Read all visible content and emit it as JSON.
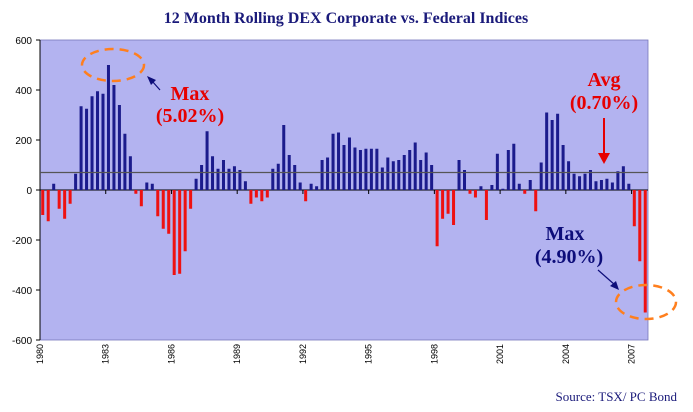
{
  "chart_data": {
    "type": "bar",
    "title": "12 Month Rolling DEX Corporate vs. Federal Indices",
    "xlabel": "",
    "ylabel": "",
    "ylim": [
      -600,
      600
    ],
    "yticks": [
      "600",
      "400",
      "200",
      "0",
      "-200",
      "-400",
      "-600"
    ],
    "x_tick_labels": [
      "1980",
      "1983",
      "1986",
      "1989",
      "1992",
      "1995",
      "1998",
      "2001",
      "2004",
      "2007"
    ],
    "grid": false,
    "average_line": 70,
    "colors": {
      "positive": "#1b1b8c",
      "negative": "#ee1111",
      "plot_bg": "#b3b3f0",
      "avg_line": "#555555",
      "highlight": "#ff7f1e"
    },
    "values": [
      -100,
      -125,
      25,
      -75,
      -115,
      -55,
      65,
      335,
      325,
      375,
      395,
      385,
      500,
      420,
      340,
      225,
      135,
      -15,
      -65,
      30,
      25,
      -105,
      -155,
      -175,
      -340,
      -335,
      -245,
      -75,
      45,
      100,
      235,
      135,
      85,
      120,
      85,
      95,
      80,
      35,
      -55,
      -30,
      -45,
      -30,
      85,
      105,
      260,
      140,
      100,
      30,
      -45,
      25,
      15,
      120,
      130,
      225,
      230,
      180,
      210,
      170,
      160,
      165,
      165,
      165,
      90,
      130,
      115,
      120,
      140,
      160,
      190,
      120,
      150,
      100,
      -225,
      -115,
      -95,
      -140,
      120,
      80,
      -15,
      -30,
      15,
      -120,
      20,
      145,
      5,
      160,
      185,
      25,
      -15,
      40,
      -85,
      110,
      310,
      280,
      305,
      180,
      115,
      65,
      55,
      65,
      80,
      35,
      40,
      45,
      30,
      75,
      95,
      25,
      -145,
      -285,
      -490
    ],
    "annotations": {
      "max_top_label": "Max",
      "max_top_value": "(5.02%)",
      "avg_label": "Avg",
      "avg_value": "(0.70%)",
      "max_bottom_label": "Max",
      "max_bottom_value": "(4.90%)"
    },
    "source": "Source: TSX/ PC Bond"
  }
}
